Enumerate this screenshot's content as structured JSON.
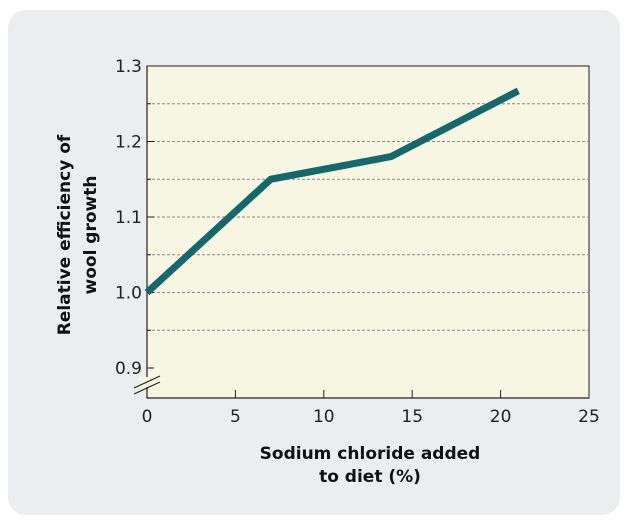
{
  "chart_data": {
    "type": "line",
    "title": "",
    "xlabel_lines": [
      "Sodium chloride added",
      "to diet (%)"
    ],
    "ylabel_lines": [
      "Relative efficiency of",
      "wool growth"
    ],
    "xlim": [
      0,
      25
    ],
    "ylim": [
      0.9,
      1.3
    ],
    "x_axis_break": false,
    "y_axis_break": true,
    "grid": "dashed horizontal",
    "x_ticks": [
      0,
      5,
      10,
      15,
      20,
      25
    ],
    "y_ticks": [
      0.9,
      1.0,
      1.1,
      1.2,
      1.3
    ],
    "x_tick_labels": [
      "0",
      "5",
      "10",
      "15",
      "20",
      "25"
    ],
    "y_tick_labels": [
      "0.9",
      "1.0",
      "1.1",
      "1.2",
      "1.3"
    ],
    "y_minor_gridlines": [
      0.95,
      1.05,
      1.15,
      1.25
    ],
    "series": [
      {
        "color": "#17676b",
        "x": [
          0,
          7,
          13.8,
          21
        ],
        "y": [
          1.0,
          1.15,
          1.18,
          1.267
        ]
      }
    ],
    "colors": {
      "plot_bg": "#f7f6e2",
      "panel_bg": "#ebedee",
      "line": "#17676b"
    }
  }
}
